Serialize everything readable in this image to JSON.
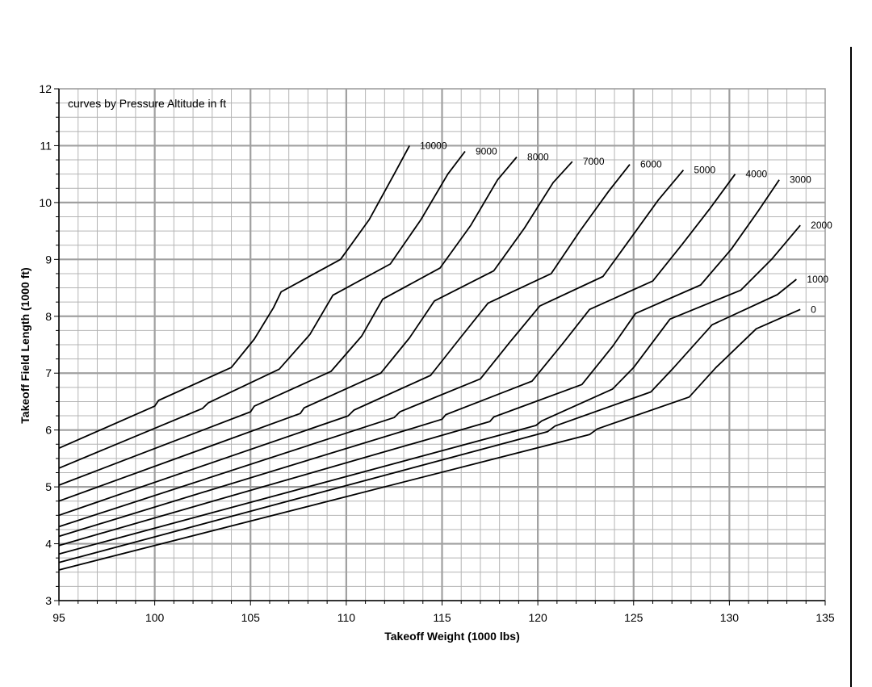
{
  "chart_data": {
    "type": "line",
    "title": "",
    "annotation": "curves by Pressure Altitude in ft",
    "xlabel": "Takeoff Weight (1000 lbs)",
    "ylabel": "Takeoff Field Length (1000 ft)",
    "xlim": [
      95,
      135
    ],
    "ylim": [
      3,
      12
    ],
    "xticks": [
      "95",
      "100",
      "105",
      "110",
      "115",
      "120",
      "125",
      "130",
      "135"
    ],
    "yticks": [
      "3",
      "4",
      "5",
      "6",
      "7",
      "8",
      "9",
      "10",
      "11",
      "12"
    ],
    "grid": true,
    "line_color": "#000000",
    "grid_color": "#b4b4b4",
    "series": [
      {
        "name": "10000",
        "points": [
          [
            95,
            5.68
          ],
          [
            100,
            6.42
          ],
          [
            100.2,
            6.52
          ],
          [
            104,
            7.1
          ],
          [
            105.2,
            7.6
          ],
          [
            106.2,
            8.15
          ],
          [
            106.6,
            8.43
          ],
          [
            109.7,
            9.0
          ],
          [
            111.2,
            9.7
          ],
          [
            112.5,
            10.5
          ],
          [
            113.3,
            11.0
          ]
        ]
      },
      {
        "name": "9000",
        "points": [
          [
            95,
            5.33
          ],
          [
            102.5,
            6.38
          ],
          [
            102.8,
            6.48
          ],
          [
            106.5,
            7.07
          ],
          [
            108.1,
            7.68
          ],
          [
            109.3,
            8.37
          ],
          [
            112.3,
            8.92
          ],
          [
            113.9,
            9.7
          ],
          [
            115.3,
            10.5
          ],
          [
            116.2,
            10.9
          ]
        ]
      },
      {
        "name": "8000",
        "points": [
          [
            95,
            5.03
          ],
          [
            105,
            6.32
          ],
          [
            105.2,
            6.42
          ],
          [
            109.2,
            7.03
          ],
          [
            110.8,
            7.65
          ],
          [
            111.9,
            8.3
          ],
          [
            114.9,
            8.85
          ],
          [
            116.5,
            9.6
          ],
          [
            117.9,
            10.4
          ],
          [
            118.9,
            10.8
          ]
        ]
      },
      {
        "name": "7000",
        "points": [
          [
            95,
            4.75
          ],
          [
            107.6,
            6.29
          ],
          [
            107.8,
            6.39
          ],
          [
            111.8,
            7.0
          ],
          [
            113.3,
            7.62
          ],
          [
            114.6,
            8.27
          ],
          [
            117.7,
            8.8
          ],
          [
            119.3,
            9.55
          ],
          [
            120.8,
            10.35
          ],
          [
            121.8,
            10.72
          ]
        ]
      },
      {
        "name": "6000",
        "points": [
          [
            95,
            4.5
          ],
          [
            110.1,
            6.25
          ],
          [
            110.4,
            6.35
          ],
          [
            114.4,
            6.96
          ],
          [
            115.9,
            7.6
          ],
          [
            117.4,
            8.23
          ],
          [
            120.7,
            8.75
          ],
          [
            122.2,
            9.5
          ],
          [
            123.7,
            10.2
          ],
          [
            124.8,
            10.67
          ]
        ]
      },
      {
        "name": "5000",
        "points": [
          [
            95,
            4.3
          ],
          [
            112.5,
            6.22
          ],
          [
            112.8,
            6.32
          ],
          [
            117,
            6.9
          ],
          [
            118.6,
            7.57
          ],
          [
            120.1,
            8.18
          ],
          [
            123.4,
            8.7
          ],
          [
            124.8,
            9.35
          ],
          [
            126.3,
            10.05
          ],
          [
            127.6,
            10.57
          ]
        ]
      },
      {
        "name": "4000",
        "points": [
          [
            95,
            4.13
          ],
          [
            115,
            6.19
          ],
          [
            115.2,
            6.27
          ],
          [
            119.7,
            6.86
          ],
          [
            121.3,
            7.52
          ],
          [
            122.7,
            8.12
          ],
          [
            126,
            8.62
          ],
          [
            127.5,
            9.25
          ],
          [
            129,
            9.9
          ],
          [
            130.3,
            10.5
          ]
        ]
      },
      {
        "name": "3000",
        "points": [
          [
            95,
            3.97
          ],
          [
            117.5,
            6.15
          ],
          [
            117.7,
            6.23
          ],
          [
            122.3,
            6.8
          ],
          [
            123.9,
            7.47
          ],
          [
            125.1,
            8.05
          ],
          [
            128.5,
            8.55
          ],
          [
            130.1,
            9.18
          ],
          [
            131.5,
            9.85
          ],
          [
            132.6,
            10.4
          ]
        ]
      },
      {
        "name": "2000",
        "points": [
          [
            95,
            3.82
          ],
          [
            119.9,
            6.08
          ],
          [
            120.2,
            6.16
          ],
          [
            123.9,
            6.72
          ],
          [
            125,
            7.1
          ],
          [
            126.9,
            7.95
          ],
          [
            130.6,
            8.46
          ],
          [
            132.2,
            9.0
          ],
          [
            133.7,
            9.6
          ]
        ]
      },
      {
        "name": "1000",
        "points": [
          [
            95,
            3.67
          ],
          [
            120.5,
            5.97
          ],
          [
            120.9,
            6.07
          ],
          [
            125.9,
            6.67
          ],
          [
            127.1,
            7.1
          ],
          [
            129.1,
            7.85
          ],
          [
            132.5,
            8.38
          ],
          [
            133.5,
            8.65
          ]
        ]
      },
      {
        "name": "0",
        "points": [
          [
            95,
            3.54
          ],
          [
            122.7,
            5.92
          ],
          [
            123.1,
            6.02
          ],
          [
            127.9,
            6.58
          ],
          [
            129.3,
            7.1
          ],
          [
            131.4,
            7.78
          ],
          [
            133.7,
            8.12
          ]
        ]
      }
    ]
  }
}
